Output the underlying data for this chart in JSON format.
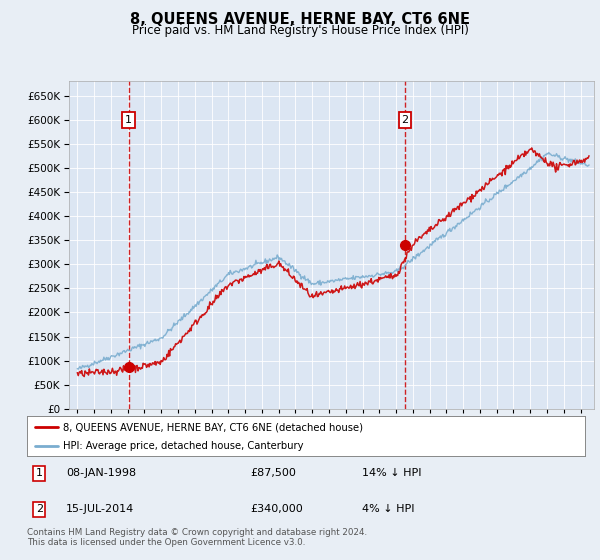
{
  "title": "8, QUEENS AVENUE, HERNE BAY, CT6 6NE",
  "subtitle": "Price paid vs. HM Land Registry's House Price Index (HPI)",
  "background_color": "#e8eef5",
  "plot_bg_color": "#dce6f3",
  "sale1_date": 1998.05,
  "sale1_price": 87500,
  "sale2_date": 2014.54,
  "sale2_price": 340000,
  "legend_entry1": "8, QUEENS AVENUE, HERNE BAY, CT6 6NE (detached house)",
  "legend_entry2": "HPI: Average price, detached house, Canterbury",
  "footer": "Contains HM Land Registry data © Crown copyright and database right 2024.\nThis data is licensed under the Open Government Licence v3.0.",
  "line_color_red": "#cc0000",
  "line_color_blue": "#7aadcf",
  "ylim_min": 0,
  "ylim_max": 680000,
  "xlim_min": 1994.5,
  "xlim_max": 2025.8
}
